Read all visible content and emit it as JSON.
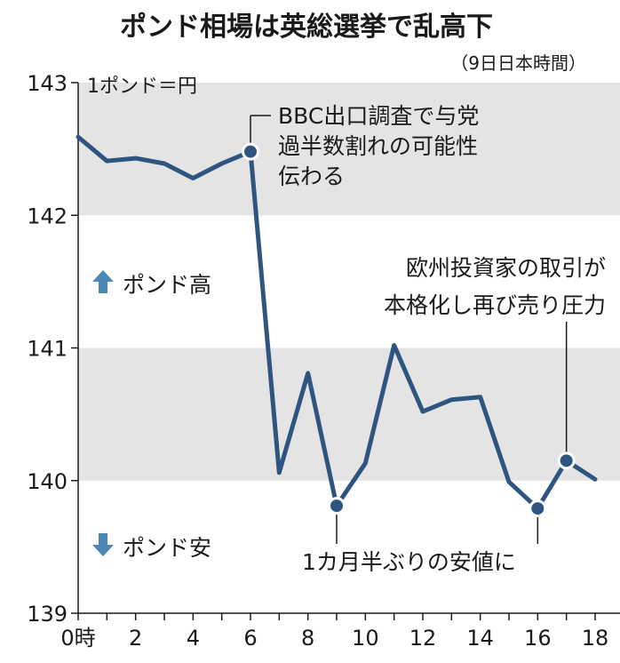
{
  "chart_data": {
    "type": "line",
    "title": "ポンド相場は英総選挙で乱高下",
    "subtitle": "（9日日本時間）",
    "unit_label": "1ポンド＝円",
    "x": [
      0,
      1,
      2,
      3,
      4,
      5,
      6,
      7,
      8,
      9,
      10,
      11,
      12,
      13,
      14,
      15,
      16,
      17,
      18
    ],
    "values": [
      142.59,
      142.41,
      142.43,
      142.39,
      142.28,
      142.39,
      142.48,
      140.06,
      140.81,
      139.81,
      140.13,
      141.02,
      140.52,
      140.61,
      140.63,
      139.99,
      139.79,
      140.15,
      140.01
    ],
    "x_tick_labels": [
      "0時",
      "2",
      "4",
      "6",
      "8",
      "10",
      "12",
      "14",
      "16",
      "18"
    ],
    "x_tick_values": [
      0,
      2,
      4,
      6,
      8,
      10,
      12,
      14,
      16,
      18
    ],
    "y_tick_labels": [
      "143",
      "142",
      "141",
      "140",
      "139"
    ],
    "y_tick_values": [
      143,
      142,
      141,
      140,
      139
    ],
    "xlim": [
      0,
      18
    ],
    "ylim": [
      139,
      143
    ],
    "line_color": "#2e557f",
    "band_color": "#e4e4e4",
    "up_arrow_color": "#4a88b5",
    "annotations": {
      "exit_poll": {
        "lines": [
          "BBC出口調査で与党",
          "過半数割れの可能性",
          "伝わる"
        ],
        "point_index": 6
      },
      "european_selling": {
        "lines": [
          "欧州投資家の取引が",
          "本格化し再び売り圧力"
        ],
        "point_index": 17
      },
      "low": {
        "text": "1カ月半ぶりの安値に",
        "point_indices": [
          9,
          16
        ]
      }
    },
    "legend": {
      "up": "ポンド高",
      "down": "ポンド安"
    }
  }
}
